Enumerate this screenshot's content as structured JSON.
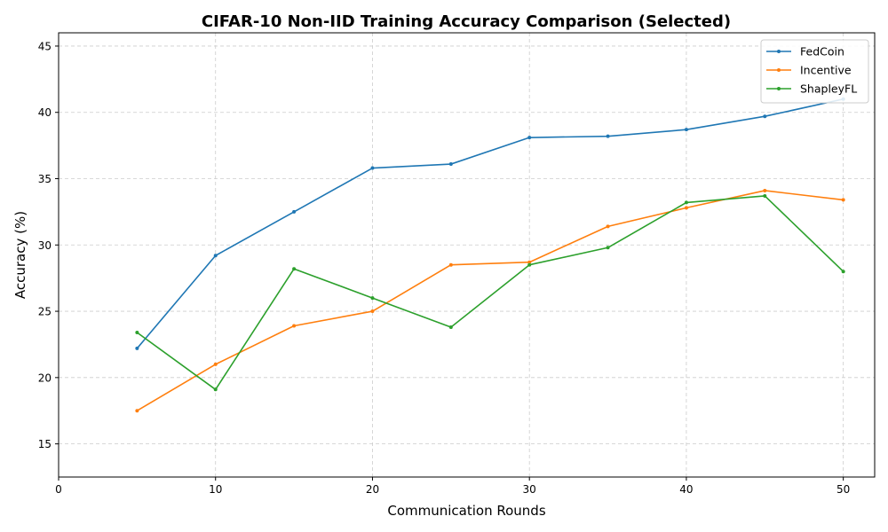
{
  "chart_data": {
    "type": "line",
    "title": "CIFAR-10 Non-IID Training Accuracy Comparison (Selected)",
    "xlabel": "Communication Rounds",
    "ylabel": "Accuracy (%)",
    "xlim": [
      0,
      52
    ],
    "ylim": [
      12.5,
      46
    ],
    "xticks": [
      0,
      10,
      20,
      30,
      40,
      50
    ],
    "yticks": [
      15,
      20,
      25,
      30,
      35,
      40,
      45
    ],
    "grid": true,
    "legend_position": "top-right",
    "x": [
      5,
      10,
      15,
      20,
      25,
      30,
      35,
      40,
      45,
      50
    ],
    "series": [
      {
        "name": "FedCoin",
        "color": "#1f77b4",
        "values": [
          22.2,
          29.2,
          32.5,
          35.8,
          36.1,
          38.1,
          38.2,
          38.7,
          39.7,
          41.0
        ]
      },
      {
        "name": "Incentive",
        "color": "#ff7f0e",
        "values": [
          17.5,
          21.0,
          23.9,
          25.0,
          28.5,
          28.7,
          31.4,
          32.8,
          34.1,
          33.4
        ]
      },
      {
        "name": "ShapleyFL",
        "color": "#2ca02c",
        "values": [
          23.4,
          19.1,
          28.2,
          26.0,
          23.8,
          28.5,
          29.8,
          33.2,
          33.7,
          28.0
        ]
      }
    ]
  }
}
